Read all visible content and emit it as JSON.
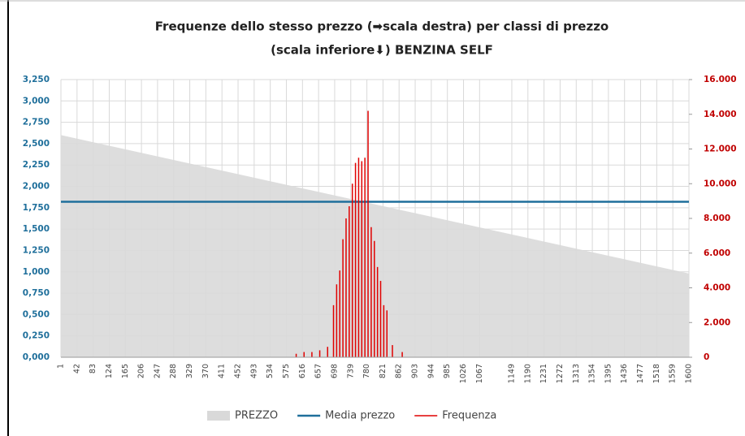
{
  "chart_data": {
    "type": "combo",
    "title": [
      "Frequenze dello stesso prezzo (➡scala destra) per classi di prezzo",
      "(scala inferiore⬇) BENZINA SELF"
    ],
    "xlim": [
      1,
      1600
    ],
    "xticks": [
      1,
      42,
      83,
      124,
      165,
      206,
      247,
      288,
      329,
      370,
      411,
      452,
      493,
      534,
      575,
      616,
      657,
      698,
      739,
      780,
      821,
      862,
      903,
      944,
      985,
      1026,
      1067,
      1149,
      1190,
      1231,
      1272,
      1313,
      1354,
      1395,
      1436,
      1477,
      1518,
      1559,
      1600
    ],
    "ylim": [
      0,
      3.25
    ],
    "yticks": [
      {
        "value": 0,
        "label": "0,000"
      },
      {
        "value": 0.25,
        "label": "0,250"
      },
      {
        "value": 0.5,
        "label": "0,500"
      },
      {
        "value": 0.75,
        "label": "0,750"
      },
      {
        "value": 1,
        "label": "1,000"
      },
      {
        "value": 1.25,
        "label": "1,250"
      },
      {
        "value": 1.5,
        "label": "1,500"
      },
      {
        "value": 1.75,
        "label": "1,750"
      },
      {
        "value": 2,
        "label": "2,000"
      },
      {
        "value": 2.25,
        "label": "2,250"
      },
      {
        "value": 2.5,
        "label": "2,500"
      },
      {
        "value": 2.75,
        "label": "2,750"
      },
      {
        "value": 3,
        "label": "3,000"
      },
      {
        "value": 3.25,
        "label": "3,250"
      }
    ],
    "y2lim": [
      0,
      16000
    ],
    "y2ticks": [
      0,
      {
        "value": 2000,
        "label": "2.000"
      },
      {
        "value": 4000,
        "label": "4.000"
      },
      {
        "value": 6000,
        "label": "6.000"
      },
      {
        "value": 8000,
        "label": "8.000"
      },
      {
        "value": 10000,
        "label": "10.000"
      },
      {
        "value": 12000,
        "label": "12.000"
      },
      {
        "value": 14000,
        "label": "14.000"
      },
      {
        "value": 16000,
        "label": "16.000"
      }
    ],
    "grid": true,
    "legend": "bottom",
    "series": [
      {
        "name": "PREZZO",
        "kind": "area",
        "color": "#d9d9d9",
        "x": [
          1,
          1600
        ],
        "values": [
          2.6,
          0.98
        ]
      },
      {
        "name": "Media prezzo",
        "kind": "line",
        "color": "#1f6f9b",
        "x": [
          1,
          1600
        ],
        "values": [
          1.82,
          1.82
        ]
      },
      {
        "name": "Frequenza",
        "kind": "needle",
        "color": "#e00000",
        "axis": "y2",
        "x": [
          600,
          620,
          640,
          660,
          680,
          695,
          703,
          711,
          719,
          727,
          735,
          743,
          751,
          759,
          767,
          775,
          783,
          791,
          799,
          807,
          815,
          823,
          831,
          845,
          870
        ],
        "values": [
          200,
          300,
          300,
          400,
          600,
          3000,
          4200,
          5000,
          6800,
          8000,
          8700,
          10000,
          11200,
          11500,
          11300,
          11500,
          14200,
          7500,
          6700,
          5200,
          4400,
          3000,
          2700,
          700,
          300
        ]
      }
    ]
  }
}
